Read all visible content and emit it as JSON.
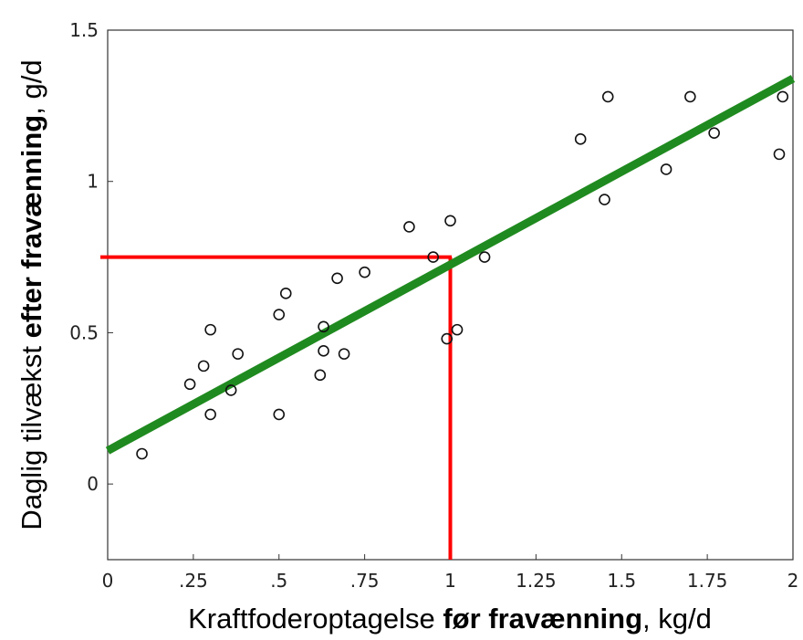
{
  "chart_data": {
    "type": "scatter",
    "xlabel": {
      "prefix": "Kraftfoderoptagelse ",
      "bold": "før fravænning",
      "suffix": ", kg/d"
    },
    "ylabel": {
      "prefix": "Daglig tilvækst ",
      "bold": "efter fravænning",
      "suffix": ", g/d"
    },
    "xlim": [
      0,
      2
    ],
    "ylim": [
      -0.25,
      1.5
    ],
    "x_ticks": [
      {
        "value": 0,
        "label": "0"
      },
      {
        "value": 0.25,
        "label": ".25"
      },
      {
        "value": 0.5,
        "label": ".5"
      },
      {
        "value": 0.75,
        "label": ".75"
      },
      {
        "value": 1,
        "label": "1"
      },
      {
        "value": 1.25,
        "label": "1.25"
      },
      {
        "value": 1.5,
        "label": "1.5"
      },
      {
        "value": 1.75,
        "label": "1.75"
      },
      {
        "value": 2,
        "label": "2"
      }
    ],
    "y_ticks": [
      {
        "value": 0,
        "label": "0"
      },
      {
        "value": 0.5,
        "label": "0.5"
      },
      {
        "value": 1,
        "label": "1"
      },
      {
        "value": 1.5,
        "label": "1.5"
      }
    ],
    "points": [
      {
        "x": 0.1,
        "y": 0.1
      },
      {
        "x": 0.24,
        "y": 0.33
      },
      {
        "x": 0.28,
        "y": 0.39
      },
      {
        "x": 0.3,
        "y": 0.51
      },
      {
        "x": 0.3,
        "y": 0.23
      },
      {
        "x": 0.36,
        "y": 0.31
      },
      {
        "x": 0.38,
        "y": 0.43
      },
      {
        "x": 0.5,
        "y": 0.56
      },
      {
        "x": 0.5,
        "y": 0.23
      },
      {
        "x": 0.52,
        "y": 0.63
      },
      {
        "x": 0.62,
        "y": 0.36
      },
      {
        "x": 0.63,
        "y": 0.52
      },
      {
        "x": 0.63,
        "y": 0.44
      },
      {
        "x": 0.67,
        "y": 0.68
      },
      {
        "x": 0.69,
        "y": 0.43
      },
      {
        "x": 0.75,
        "y": 0.7
      },
      {
        "x": 0.88,
        "y": 0.85
      },
      {
        "x": 0.95,
        "y": 0.75
      },
      {
        "x": 0.99,
        "y": 0.48
      },
      {
        "x": 1.0,
        "y": 0.87
      },
      {
        "x": 1.02,
        "y": 0.51
      },
      {
        "x": 1.1,
        "y": 0.75
      },
      {
        "x": 1.38,
        "y": 1.14
      },
      {
        "x": 1.45,
        "y": 0.94
      },
      {
        "x": 1.46,
        "y": 1.28
      },
      {
        "x": 1.63,
        "y": 1.04
      },
      {
        "x": 1.7,
        "y": 1.28
      },
      {
        "x": 1.77,
        "y": 1.16
      },
      {
        "x": 1.96,
        "y": 1.09
      },
      {
        "x": 1.97,
        "y": 1.28
      }
    ],
    "regression_line": {
      "x": [
        0,
        2
      ],
      "y": [
        0.11,
        1.34
      ],
      "color": "#1f8a1f"
    },
    "reference_line": {
      "x": 1,
      "y": 0.75,
      "color": "#ff0000"
    },
    "grid": false
  }
}
